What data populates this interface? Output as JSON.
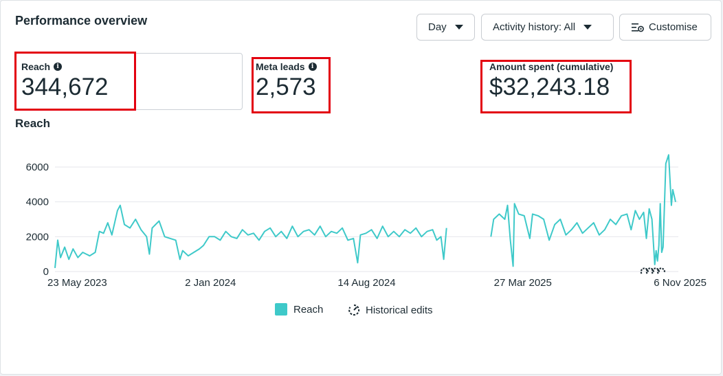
{
  "header": {
    "title": "Performance overview"
  },
  "controls": {
    "day_label": "Day",
    "activity_label": "Activity history: All",
    "customise_label": "Customise"
  },
  "metrics": [
    {
      "label": "Reach",
      "value": "344,672",
      "has_info": true
    },
    {
      "label": "Meta leads",
      "value": "2,573",
      "has_info": true
    },
    {
      "label": "Amount spent (cumulative)",
      "value": "$32,243.18",
      "has_info": false
    }
  ],
  "colors": {
    "series": "#3ec9c9",
    "grid": "#e4e6eb",
    "highlight": "#e3000f",
    "text": "#1c2b33"
  },
  "chart_data": {
    "type": "line",
    "title": "Reach",
    "xlabel": "",
    "ylabel": "",
    "ylim": [
      0,
      6000
    ],
    "yticks": [
      0,
      2000,
      4000,
      6000
    ],
    "xticks": [
      "23 May 2023",
      "2 Jan 2024",
      "14 Aug 2024",
      "27 Mar 2025",
      "6 Nov 2025"
    ],
    "x_range_days": [
      0,
      898
    ],
    "xtick_days": [
      0,
      224,
      449,
      674,
      898
    ],
    "series": [
      {
        "name": "Reach",
        "note": "daily reach, approximate key points (day offset from 23 May 2023, value)",
        "points": [
          [
            0,
            200
          ],
          [
            4,
            1800
          ],
          [
            8,
            800
          ],
          [
            14,
            1400
          ],
          [
            20,
            700
          ],
          [
            26,
            1300
          ],
          [
            33,
            800
          ],
          [
            40,
            1100
          ],
          [
            50,
            900
          ],
          [
            58,
            1100
          ],
          [
            64,
            2300
          ],
          [
            70,
            2200
          ],
          [
            76,
            2800
          ],
          [
            82,
            2100
          ],
          [
            90,
            3500
          ],
          [
            94,
            3800
          ],
          [
            100,
            2700
          ],
          [
            108,
            2500
          ],
          [
            116,
            3000
          ],
          [
            124,
            2400
          ],
          [
            132,
            2000
          ],
          [
            136,
            1000
          ],
          [
            140,
            2500
          ],
          [
            150,
            2900
          ],
          [
            158,
            2000
          ],
          [
            166,
            1900
          ],
          [
            174,
            1800
          ],
          [
            180,
            700
          ],
          [
            184,
            1200
          ],
          [
            192,
            900
          ],
          [
            200,
            1100
          ],
          [
            208,
            1300
          ],
          [
            214,
            1500
          ],
          [
            222,
            2000
          ],
          [
            230,
            2000
          ],
          [
            238,
            1800
          ],
          [
            246,
            2300
          ],
          [
            254,
            2000
          ],
          [
            262,
            1900
          ],
          [
            270,
            2400
          ],
          [
            278,
            2100
          ],
          [
            286,
            2200
          ],
          [
            294,
            1800
          ],
          [
            302,
            2300
          ],
          [
            310,
            2500
          ],
          [
            318,
            2000
          ],
          [
            326,
            2300
          ],
          [
            334,
            1900
          ],
          [
            342,
            2600
          ],
          [
            350,
            2000
          ],
          [
            358,
            2300
          ],
          [
            366,
            2400
          ],
          [
            374,
            2100
          ],
          [
            382,
            2600
          ],
          [
            390,
            2000
          ],
          [
            398,
            2300
          ],
          [
            406,
            2200
          ],
          [
            414,
            2500
          ],
          [
            422,
            1800
          ],
          [
            430,
            1900
          ],
          [
            436,
            500
          ],
          [
            440,
            2100
          ],
          [
            448,
            2200
          ],
          [
            456,
            2400
          ],
          [
            464,
            1900
          ],
          [
            472,
            2600
          ],
          [
            480,
            2000
          ],
          [
            488,
            2300
          ],
          [
            496,
            2000
          ],
          [
            504,
            2400
          ],
          [
            512,
            2200
          ],
          [
            520,
            2500
          ],
          [
            528,
            2000
          ],
          [
            536,
            2300
          ],
          [
            544,
            2400
          ],
          [
            550,
            1800
          ],
          [
            556,
            2000
          ],
          [
            560,
            700
          ],
          [
            564,
            2500
          ],
          [
            628,
            2000
          ],
          [
            632,
            3000
          ],
          [
            640,
            3300
          ],
          [
            648,
            3000
          ],
          [
            652,
            3800
          ],
          [
            656,
            1800
          ],
          [
            660,
            300
          ],
          [
            662,
            3900
          ],
          [
            668,
            3300
          ],
          [
            676,
            3200
          ],
          [
            684,
            1900
          ],
          [
            688,
            3300
          ],
          [
            696,
            3200
          ],
          [
            704,
            3000
          ],
          [
            712,
            1800
          ],
          [
            720,
            2700
          ],
          [
            728,
            3000
          ],
          [
            736,
            2100
          ],
          [
            744,
            2400
          ],
          [
            752,
            2800
          ],
          [
            760,
            2200
          ],
          [
            768,
            2500
          ],
          [
            776,
            2800
          ],
          [
            784,
            2100
          ],
          [
            792,
            2400
          ],
          [
            800,
            3000
          ],
          [
            808,
            2700
          ],
          [
            816,
            3200
          ],
          [
            824,
            3300
          ],
          [
            830,
            2400
          ],
          [
            836,
            3500
          ],
          [
            842,
            3000
          ],
          [
            848,
            3400
          ],
          [
            852,
            1900
          ],
          [
            856,
            3600
          ],
          [
            860,
            3000
          ],
          [
            864,
            400
          ],
          [
            866,
            1200
          ],
          [
            868,
            600
          ],
          [
            870,
            1500
          ],
          [
            872,
            3900
          ],
          [
            874,
            1100
          ],
          [
            876,
            1400
          ],
          [
            880,
            6200
          ],
          [
            884,
            6700
          ],
          [
            888,
            3800
          ],
          [
            890,
            4700
          ],
          [
            894,
            4000
          ]
        ],
        "gap_days": [
          [
            564,
            628
          ]
        ],
        "dropout_days": [
          [
            860,
            866
          ],
          [
            872,
            876
          ]
        ]
      }
    ],
    "historical_edits_days": [
      850,
      858,
      866,
      874
    ],
    "legend": [
      "Reach",
      "Historical edits"
    ]
  }
}
